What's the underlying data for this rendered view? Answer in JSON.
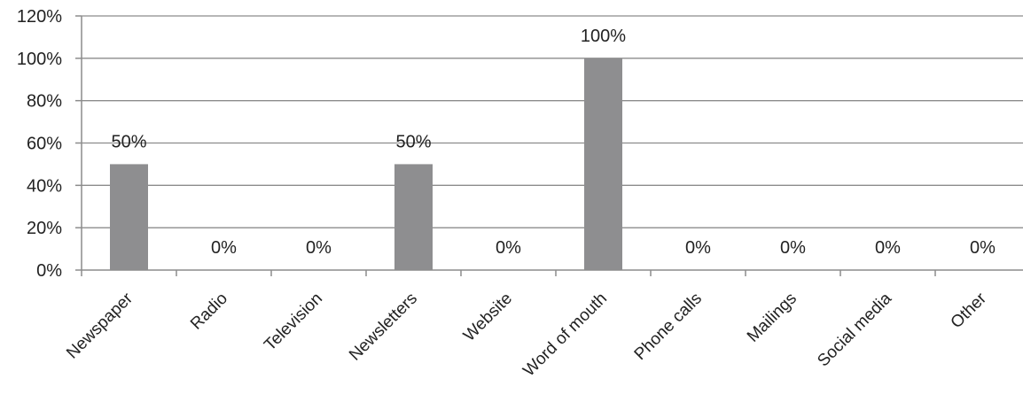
{
  "chart_data": {
    "type": "bar",
    "categories": [
      "Newspaper",
      "Radio",
      "Television",
      "Newsletters",
      "Website",
      "Word of mouth",
      "Phone calls",
      "Mailings",
      "Social media",
      "Other"
    ],
    "values": [
      50,
      0,
      0,
      50,
      0,
      100,
      0,
      0,
      0,
      0
    ],
    "data_labels": [
      "50%",
      "0%",
      "0%",
      "50%",
      "0%",
      "100%",
      "0%",
      "0%",
      "0%",
      "0%"
    ],
    "ylim": [
      0,
      120
    ],
    "y_ticks": [
      0,
      20,
      40,
      60,
      80,
      100,
      120
    ],
    "y_tick_labels": [
      "0%",
      "20%",
      "40%",
      "60%",
      "80%",
      "100%",
      "120%"
    ],
    "grid": true,
    "legend": "none",
    "colors": {
      "bar": "#8e8e90",
      "grid": "#8c8c8c",
      "text": "#222222"
    }
  }
}
